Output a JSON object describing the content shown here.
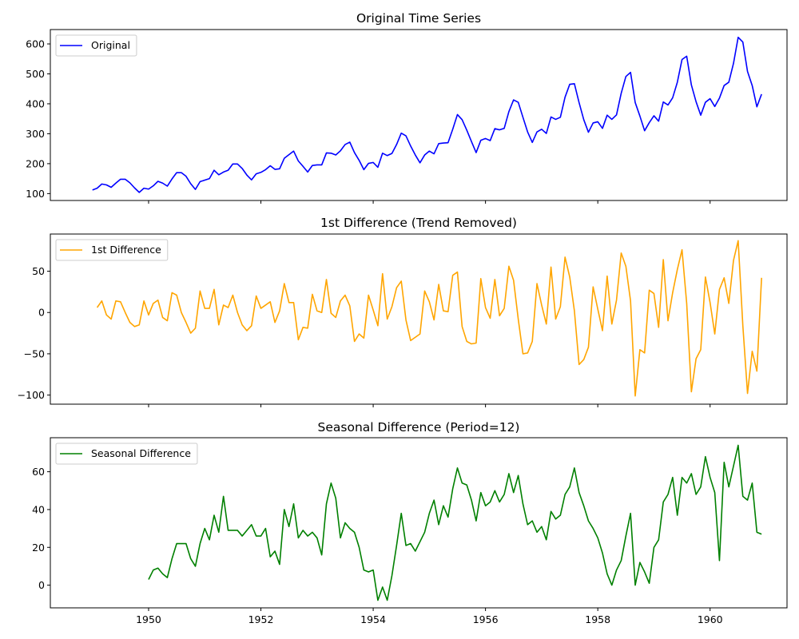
{
  "chart_data": [
    {
      "type": "line",
      "title": "Original Time Series",
      "xlabel": "",
      "ylabel": "",
      "legend": {
        "entries": [
          "Original"
        ],
        "placement": "upper-left"
      },
      "color": "#0000ff",
      "ylim": [
        77,
        648
      ],
      "yticks": [
        100,
        200,
        300,
        400,
        500,
        600
      ],
      "ytick_labels": [
        "100",
        "200",
        "300",
        "400",
        "500",
        "600"
      ],
      "x_start": "1949-01",
      "x_frequency": "monthly",
      "values": [
        112,
        118,
        132,
        129,
        121,
        135,
        148,
        148,
        136,
        119,
        104,
        118,
        115,
        126,
        141,
        135,
        125,
        149,
        170,
        170,
        158,
        133,
        114,
        140,
        145,
        150,
        178,
        163,
        172,
        178,
        199,
        199,
        184,
        162,
        146,
        166,
        171,
        180,
        193,
        181,
        183,
        218,
        230,
        242,
        209,
        191,
        172,
        194,
        196,
        196,
        236,
        235,
        229,
        243,
        264,
        272,
        237,
        211,
        180,
        201,
        204,
        188,
        235,
        227,
        234,
        264,
        302,
        293,
        259,
        229,
        203,
        229,
        242,
        233,
        267,
        269,
        270,
        315,
        364,
        347,
        312,
        274,
        237,
        278,
        284,
        277,
        317,
        313,
        318,
        374,
        413,
        405,
        355,
        306,
        271,
        306,
        315,
        301,
        356,
        348,
        355,
        422,
        465,
        467,
        404,
        347,
        305,
        336,
        340,
        318,
        362,
        348,
        363,
        435,
        491,
        505,
        404,
        359,
        310,
        337,
        360,
        342,
        406,
        396,
        420,
        472,
        548,
        559,
        463,
        407,
        362,
        405,
        417,
        391,
        419,
        461,
        472,
        535,
        622,
        606,
        508,
        461,
        390,
        432
      ],
      "show_xtick_labels": false
    },
    {
      "type": "line",
      "title": "1st Difference (Trend Removed)",
      "xlabel": "",
      "ylabel": "",
      "legend": {
        "entries": [
          "1st Difference"
        ],
        "placement": "upper-left"
      },
      "color": "#ffa500",
      "ylim": [
        -111,
        95
      ],
      "yticks": [
        -100,
        -50,
        0,
        50
      ],
      "ytick_labels": [
        "−100",
        "−50",
        "0",
        "50"
      ],
      "x_start": "1949-02",
      "x_frequency": "monthly",
      "values": [
        6,
        14,
        -3,
        -8,
        14,
        13,
        0,
        -12,
        -17,
        -15,
        14,
        -3,
        11,
        15,
        -6,
        -10,
        24,
        21,
        0,
        -12,
        -25,
        -19,
        26,
        5,
        5,
        28,
        -15,
        9,
        6,
        21,
        0,
        -15,
        -22,
        -16,
        20,
        5,
        9,
        13,
        -12,
        2,
        35,
        12,
        12,
        -33,
        -18,
        -19,
        22,
        2,
        0,
        40,
        -1,
        -6,
        14,
        21,
        8,
        -35,
        -26,
        -31,
        21,
        3,
        -16,
        47,
        -8,
        7,
        30,
        38,
        -9,
        -34,
        -30,
        -26,
        26,
        13,
        -9,
        34,
        2,
        1,
        45,
        49,
        -17,
        -35,
        -38,
        -37,
        41,
        6,
        -7,
        40,
        -4,
        5,
        56,
        39,
        -8,
        -50,
        -49,
        -35,
        35,
        9,
        -14,
        55,
        -8,
        7,
        67,
        43,
        2,
        -63,
        -57,
        -42,
        31,
        4,
        -22,
        44,
        -14,
        15,
        72,
        56,
        14,
        -101,
        -45,
        -49,
        27,
        23,
        -18,
        64,
        -10,
        24,
        52,
        76,
        11,
        -96,
        -56,
        -45,
        43,
        12,
        -26,
        28,
        42,
        11,
        63,
        87,
        -16,
        -98,
        -47,
        -71,
        42
      ],
      "show_xtick_labels": false
    },
    {
      "type": "line",
      "title": "Seasonal Difference (Period=12)",
      "xlabel": "",
      "ylabel": "",
      "legend": {
        "entries": [
          "Seasonal Difference"
        ],
        "placement": "upper-left"
      },
      "color": "#008000",
      "ylim": [
        -12,
        78
      ],
      "yticks": [
        0,
        20,
        40,
        60
      ],
      "ytick_labels": [
        "0",
        "20",
        "40",
        "60"
      ],
      "x_start": "1950-01",
      "x_frequency": "monthly",
      "values": [
        3,
        8,
        9,
        6,
        4,
        14,
        22,
        22,
        22,
        14,
        10,
        22,
        30,
        24,
        37,
        28,
        47,
        29,
        29,
        29,
        26,
        29,
        32,
        26,
        26,
        30,
        15,
        18,
        11,
        40,
        31,
        43,
        25,
        29,
        26,
        28,
        25,
        16,
        43,
        54,
        46,
        25,
        33,
        30,
        28,
        20,
        8,
        7,
        8,
        -8,
        -1,
        -8,
        5,
        21,
        38,
        21,
        22,
        18,
        23,
        28,
        38,
        45,
        32,
        42,
        36,
        51,
        62,
        54,
        53,
        45,
        34,
        49,
        42,
        44,
        50,
        44,
        48,
        59,
        49,
        58,
        43,
        32,
        34,
        28,
        31,
        24,
        39,
        35,
        37,
        48,
        52,
        62,
        49,
        42,
        34,
        30,
        25,
        17,
        6,
        0,
        8,
        13,
        26,
        38,
        0,
        12,
        7,
        1,
        20,
        24,
        44,
        48,
        57,
        37,
        57,
        54,
        59,
        48,
        52,
        68,
        57,
        49,
        13,
        65,
        52,
        63,
        74,
        47,
        45,
        54,
        28,
        27
      ]
    }
  ],
  "shared_x_axis": {
    "xlim_years": [
      1948.25,
      1961.37
    ],
    "xticks": [
      1950,
      1952,
      1954,
      1956,
      1958,
      1960
    ],
    "xtick_labels": [
      "1950",
      "1952",
      "1954",
      "1956",
      "1958",
      "1960"
    ]
  }
}
